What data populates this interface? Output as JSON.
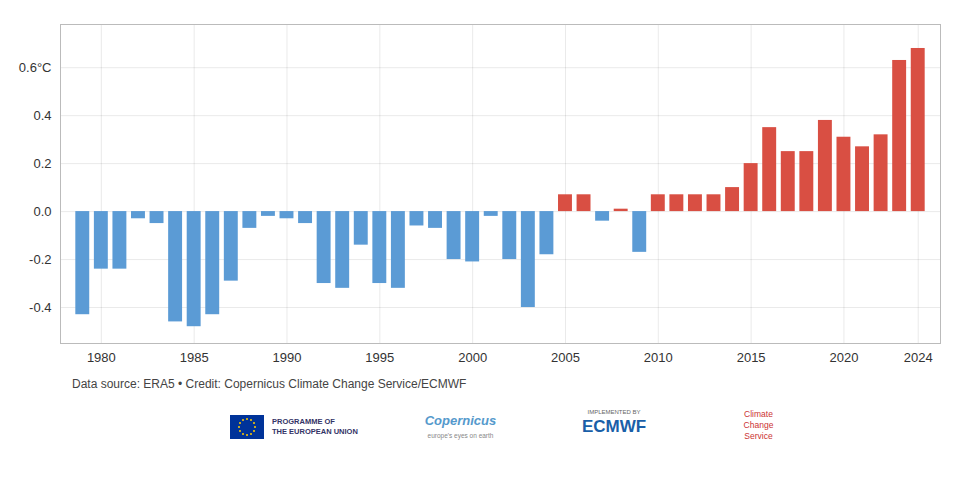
{
  "chart_data": {
    "type": "bar",
    "x": [
      1979,
      1980,
      1981,
      1982,
      1983,
      1984,
      1985,
      1986,
      1987,
      1988,
      1989,
      1990,
      1991,
      1992,
      1993,
      1994,
      1995,
      1996,
      1997,
      1998,
      1999,
      2000,
      2001,
      2002,
      2003,
      2004,
      2005,
      2006,
      2007,
      2008,
      2009,
      2010,
      2011,
      2012,
      2013,
      2014,
      2015,
      2016,
      2017,
      2018,
      2019,
      2020,
      2021,
      2022,
      2023,
      2024
    ],
    "values": [
      -0.43,
      -0.24,
      -0.24,
      -0.03,
      -0.05,
      -0.46,
      -0.48,
      -0.43,
      -0.29,
      -0.07,
      -0.02,
      -0.03,
      -0.05,
      -0.3,
      -0.32,
      -0.14,
      -0.3,
      -0.32,
      -0.06,
      -0.07,
      -0.2,
      -0.21,
      -0.02,
      -0.2,
      -0.4,
      -0.18,
      0.07,
      0.07,
      -0.04,
      0.01,
      -0.17,
      0.07,
      0.07,
      0.07,
      0.07,
      0.1,
      0.2,
      0.35,
      0.25,
      0.25,
      0.38,
      0.31,
      0.27,
      0.32,
      0.63,
      0.68
    ],
    "colors": [
      "#5b9bd5",
      "#5b9bd5",
      "#5b9bd5",
      "#5b9bd5",
      "#5b9bd5",
      "#5b9bd5",
      "#5b9bd5",
      "#5b9bd5",
      "#5b9bd5",
      "#5b9bd5",
      "#5b9bd5",
      "#5b9bd5",
      "#5b9bd5",
      "#5b9bd5",
      "#5b9bd5",
      "#5b9bd5",
      "#5b9bd5",
      "#5b9bd5",
      "#5b9bd5",
      "#5b9bd5",
      "#5b9bd5",
      "#5b9bd5",
      "#5b9bd5",
      "#5b9bd5",
      "#5b9bd5",
      "#5b9bd5",
      "#d94f43",
      "#d94f43",
      "#5b9bd5",
      "#d94f43",
      "#5b9bd5",
      "#d94f43",
      "#d94f43",
      "#d94f43",
      "#d94f43",
      "#d94f43",
      "#d94f43",
      "#d94f43",
      "#d94f43",
      "#d94f43",
      "#d94f43",
      "#d94f43",
      "#d94f43",
      "#d94f43",
      "#d94f43",
      "#d94f43"
    ],
    "xlim": [
      1977.8,
      2025.2
    ],
    "xticks": [
      1980,
      1985,
      1990,
      1995,
      2000,
      2005,
      2010,
      2015,
      2020,
      2024
    ],
    "ylim": [
      -0.55,
      0.78
    ],
    "yticks": [
      -0.4,
      -0.2,
      {
        "value": 0.0,
        "label": "0.0"
      },
      0.2,
      0.4,
      {
        "value": 0.6,
        "label": "0.6°C"
      }
    ],
    "grid": true,
    "annotations": [
      "Data source: ERA5 • Credit: Copernicus Climate Change Service/ECMWF",
      "PROGRAMME OF\nTHE EUROPEAN UNION",
      "Copernicus",
      "europe's eyes on earth",
      "IMPLEMENTED BY",
      "ECMWF",
      "Climate\nChange\nService"
    ]
  }
}
